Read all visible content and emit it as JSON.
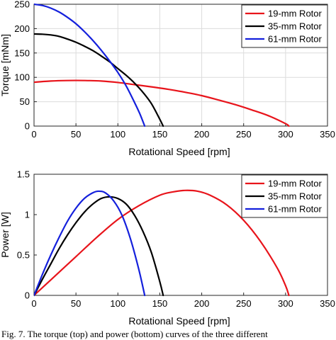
{
  "caption": "Fig. 7.   The torque (top) and power (bottom) curves of the three different",
  "chart_data": [
    {
      "type": "line",
      "title": "",
      "xlabel": "Rotational Speed [rpm]",
      "ylabel": "Torque [mNm]",
      "xlim": [
        0,
        350
      ],
      "ylim": [
        0,
        250
      ],
      "xticks": [
        0,
        50,
        100,
        150,
        200,
        250,
        300,
        350
      ],
      "yticks": [
        0,
        50,
        100,
        150,
        200,
        250
      ],
      "grid": true,
      "legend_position": "top-right",
      "series": [
        {
          "name": "19-mm Rotor",
          "color": "#e8141b",
          "x": [
            0,
            20,
            40,
            60,
            80,
            100,
            120,
            140,
            160,
            180,
            200,
            220,
            240,
            260,
            280,
            300,
            304
          ],
          "y": [
            90,
            92.5,
            93.5,
            93.5,
            92.5,
            89.5,
            85,
            80.5,
            75.5,
            69.5,
            62.5,
            53.5,
            44,
            33,
            21,
            5,
            0
          ]
        },
        {
          "name": "35-mm Rotor",
          "color": "#000000",
          "x": [
            0,
            10,
            20,
            30,
            40,
            50,
            60,
            70,
            80,
            90,
            100,
            110,
            120,
            130,
            140,
            150,
            154
          ],
          "y": [
            189,
            188.5,
            187,
            184,
            178.5,
            172,
            164,
            155,
            144,
            132,
            118,
            104,
            88,
            69,
            46,
            14,
            0
          ]
        },
        {
          "name": "61-mm Rotor",
          "color": "#1420dc",
          "x": [
            0,
            10,
            20,
            30,
            40,
            50,
            60,
            70,
            80,
            90,
            100,
            110,
            120,
            126,
            132
          ],
          "y": [
            250,
            247.5,
            242,
            234,
            223,
            210,
            194,
            176,
            156,
            134,
            110,
            82,
            48,
            26,
            0
          ]
        }
      ]
    },
    {
      "type": "line",
      "title": "",
      "xlabel": "Rotational Speed [rpm]",
      "ylabel": "Power [W]",
      "xlim": [
        0,
        350
      ],
      "ylim": [
        0,
        1.5
      ],
      "xticks": [
        0,
        50,
        100,
        150,
        200,
        250,
        300,
        350
      ],
      "yticks": [
        0,
        0.5,
        1,
        1.5
      ],
      "ytick_labels": [
        "0",
        "0.5",
        "1",
        "1.5"
      ],
      "grid": false,
      "legend_position": "top-right",
      "series": [
        {
          "name": "19-mm Rotor",
          "color": "#e8141b",
          "x": [
            0,
            25,
            50,
            75,
            100,
            125,
            150,
            165,
            180,
            195,
            210,
            230,
            250,
            270,
            290,
            300,
            304
          ],
          "y": [
            0,
            0.24,
            0.48,
            0.72,
            0.94,
            1.11,
            1.24,
            1.28,
            1.3,
            1.29,
            1.24,
            1.12,
            0.93,
            0.67,
            0.34,
            0.12,
            0
          ]
        },
        {
          "name": "35-mm Rotor",
          "color": "#000000",
          "x": [
            0,
            10,
            20,
            30,
            40,
            50,
            60,
            70,
            80,
            90,
            100,
            110,
            120,
            130,
            140,
            150,
            154
          ],
          "y": [
            0,
            0.2,
            0.39,
            0.58,
            0.75,
            0.9,
            1.03,
            1.13,
            1.2,
            1.22,
            1.2,
            1.13,
            0.99,
            0.79,
            0.53,
            0.17,
            0
          ]
        },
        {
          "name": "61-mm Rotor",
          "color": "#1420dc",
          "x": [
            0,
            10,
            20,
            30,
            40,
            50,
            60,
            70,
            77,
            85,
            95,
            105,
            115,
            125,
            132
          ],
          "y": [
            0,
            0.26,
            0.5,
            0.72,
            0.92,
            1.08,
            1.2,
            1.27,
            1.29,
            1.27,
            1.17,
            0.99,
            0.7,
            0.32,
            0
          ]
        }
      ]
    }
  ]
}
